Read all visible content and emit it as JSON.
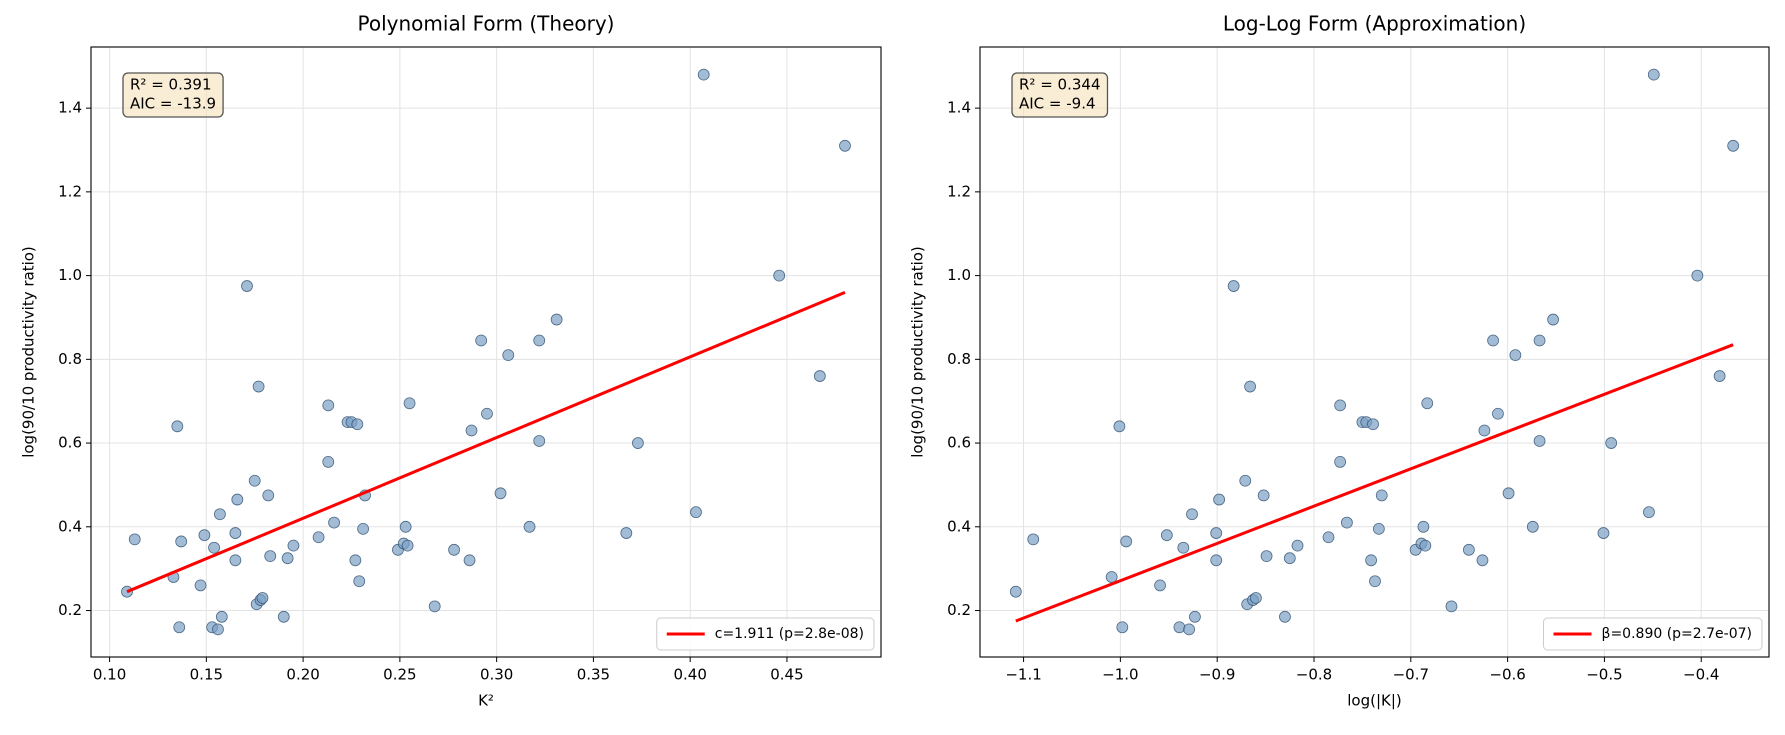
{
  "chart_data": [
    {
      "type": "scatter",
      "title": "Polynomial Form (Theory)",
      "xlabel": "K²",
      "ylabel": "log(90/10 productivity ratio)",
      "annotation": [
        "R² = 0.391",
        "AIC = -13.9"
      ],
      "xlim": [
        0.0904,
        0.4986
      ],
      "ylim": [
        0.089,
        1.546
      ],
      "xticks": [
        {
          "value": 0.1,
          "label": "0.10"
        },
        {
          "value": 0.15,
          "label": "0.15"
        },
        {
          "value": 0.2,
          "label": "0.20"
        },
        {
          "value": 0.25,
          "label": "0.25"
        },
        {
          "value": 0.3,
          "label": "0.30"
        },
        {
          "value": 0.35,
          "label": "0.35"
        },
        {
          "value": 0.4,
          "label": "0.40"
        },
        {
          "value": 0.45,
          "label": "0.45"
        }
      ],
      "yticks": [
        0.2,
        0.4,
        0.6,
        0.8,
        {
          "value": 1.0,
          "label": "1.0"
        },
        1.2,
        1.4
      ],
      "grid": true,
      "legend": "lower right",
      "series": [
        {
          "style": "points",
          "color": "#7b9fc4",
          "x": [
            0.109,
            0.113,
            0.133,
            0.135,
            0.136,
            0.137,
            0.147,
            0.149,
            0.153,
            0.154,
            0.156,
            0.157,
            0.158,
            0.165,
            0.165,
            0.166,
            0.171,
            0.175,
            0.177,
            0.176,
            0.178,
            0.179,
            0.182,
            0.183,
            0.19,
            0.192,
            0.195,
            0.208,
            0.213,
            0.213,
            0.216,
            0.223,
            0.225,
            0.227,
            0.228,
            0.229,
            0.231,
            0.232,
            0.249,
            0.252,
            0.253,
            0.254,
            0.255,
            0.268,
            0.278,
            0.286,
            0.287,
            0.292,
            0.295,
            0.302,
            0.306,
            0.317,
            0.322,
            0.322,
            0.331,
            0.367,
            0.373,
            0.403,
            0.407,
            0.446,
            0.467,
            0.48
          ],
          "values": [
            0.245,
            0.37,
            0.28,
            0.64,
            0.16,
            0.365,
            0.26,
            0.38,
            0.16,
            0.35,
            0.155,
            0.43,
            0.185,
            0.385,
            0.32,
            0.465,
            0.975,
            0.51,
            0.735,
            0.215,
            0.225,
            0.23,
            0.475,
            0.33,
            0.185,
            0.325,
            0.355,
            0.375,
            0.69,
            0.555,
            0.41,
            0.65,
            0.65,
            0.32,
            0.645,
            0.27,
            0.395,
            0.475,
            0.345,
            0.36,
            0.4,
            0.355,
            0.695,
            0.21,
            0.345,
            0.32,
            0.63,
            0.845,
            0.67,
            0.48,
            0.81,
            0.4,
            0.845,
            0.605,
            0.895,
            0.385,
            0.6,
            0.435,
            1.48,
            1.0,
            0.76,
            1.31
          ]
        },
        {
          "style": "line",
          "name": "c=1.911 (p=2.8e-08)",
          "color": "#ff0000",
          "x": [
            0.109,
            0.48
          ],
          "values": [
            0.245,
            0.96
          ]
        }
      ]
    },
    {
      "type": "scatter",
      "title": "Log-Log Form (Approximation)",
      "xlabel": "log(|K|)",
      "ylabel": "log(90/10 productivity ratio)",
      "annotation": [
        "R² = 0.344",
        "AIC = -9.4"
      ],
      "xlim": [
        -1.145,
        -0.33
      ],
      "ylim": [
        0.089,
        1.546
      ],
      "xticks": [
        {
          "value": -1.1,
          "label": "−1.1"
        },
        {
          "value": -1.0,
          "label": "−1.0"
        },
        {
          "value": -0.9,
          "label": "−0.9"
        },
        {
          "value": -0.8,
          "label": "−0.8"
        },
        {
          "value": -0.7,
          "label": "−0.7"
        },
        {
          "value": -0.6,
          "label": "−0.6"
        },
        {
          "value": -0.5,
          "label": "−0.5"
        },
        {
          "value": -0.4,
          "label": "−0.4"
        }
      ],
      "yticks": [
        0.2,
        0.4,
        0.6,
        0.8,
        {
          "value": 1.0,
          "label": "1.0"
        },
        1.2,
        1.4
      ],
      "grid": true,
      "legend": "lower right",
      "series": [
        {
          "style": "points",
          "color": "#7b9fc4",
          "x": [
            -1.108,
            -1.09,
            -1.009,
            -1.001,
            -0.998,
            -0.994,
            -0.959,
            -0.952,
            -0.939,
            -0.935,
            -0.929,
            -0.926,
            -0.923,
            -0.901,
            -0.901,
            -0.898,
            -0.883,
            -0.871,
            -0.866,
            -0.869,
            -0.863,
            -0.86,
            -0.852,
            -0.849,
            -0.83,
            -0.825,
            -0.817,
            -0.785,
            -0.773,
            -0.773,
            -0.766,
            -0.75,
            -0.746,
            -0.741,
            -0.739,
            -0.737,
            -0.733,
            -0.73,
            -0.695,
            -0.689,
            -0.687,
            -0.685,
            -0.683,
            -0.658,
            -0.64,
            -0.626,
            -0.624,
            -0.615,
            -0.61,
            -0.599,
            -0.592,
            -0.574,
            -0.567,
            -0.567,
            -0.553,
            -0.501,
            -0.493,
            -0.454,
            -0.449,
            -0.404,
            -0.381,
            -0.367
          ],
          "values": [
            0.245,
            0.37,
            0.28,
            0.64,
            0.16,
            0.365,
            0.26,
            0.38,
            0.16,
            0.35,
            0.155,
            0.43,
            0.185,
            0.385,
            0.32,
            0.465,
            0.975,
            0.51,
            0.735,
            0.215,
            0.225,
            0.23,
            0.475,
            0.33,
            0.185,
            0.325,
            0.355,
            0.375,
            0.69,
            0.555,
            0.41,
            0.65,
            0.65,
            0.32,
            0.645,
            0.27,
            0.395,
            0.475,
            0.345,
            0.36,
            0.4,
            0.355,
            0.695,
            0.21,
            0.345,
            0.32,
            0.63,
            0.845,
            0.67,
            0.48,
            0.81,
            0.4,
            0.845,
            0.605,
            0.895,
            0.385,
            0.6,
            0.435,
            1.48,
            1.0,
            0.76,
            1.31
          ]
        },
        {
          "style": "line",
          "name": "β=0.890 (p=2.7e-07)",
          "color": "#ff0000",
          "x": [
            -1.108,
            -0.367
          ],
          "values": [
            0.175,
            0.835
          ]
        }
      ]
    }
  ]
}
